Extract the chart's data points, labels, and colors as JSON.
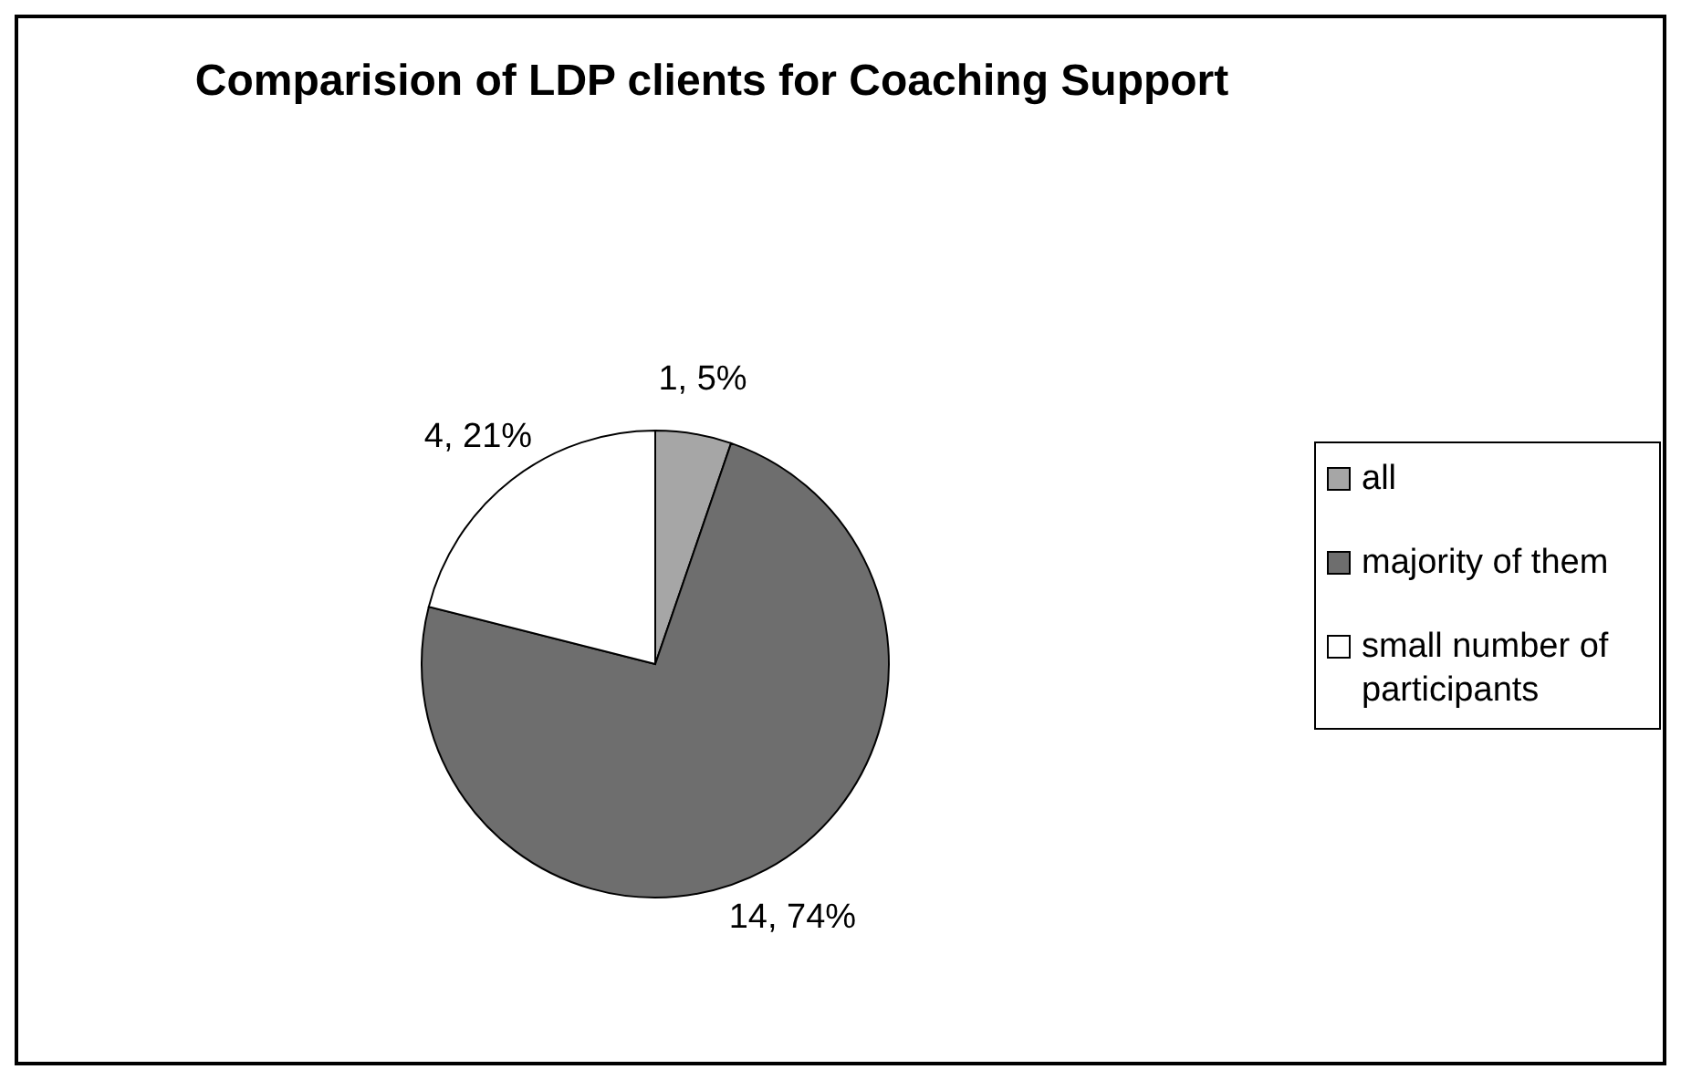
{
  "chart_data": {
    "type": "pie",
    "title": "Comparision of LDP clients for Coaching Support",
    "categories": [
      "all",
      "majority of them",
      "small number of participants"
    ],
    "values": [
      1,
      14,
      4
    ],
    "colors": [
      "#a6a6a6",
      "#6e6e6e",
      "#ffffff"
    ],
    "value_labels": [
      "1, 5%",
      "14, 74%",
      "4, 21%"
    ],
    "legend": "right"
  }
}
